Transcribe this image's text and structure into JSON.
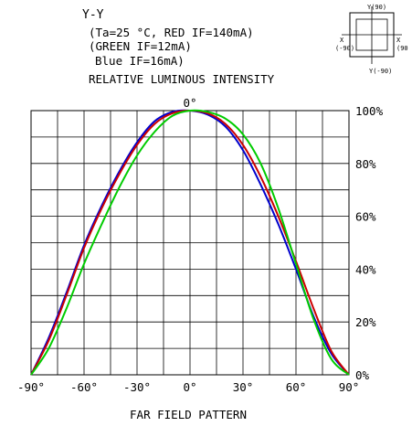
{
  "header": {
    "axis_name": "Y-Y",
    "conditions_line1": "(Ta=25 °C, RED IF=140mA)",
    "conditions_line2": "(GREEN   IF=12mA)",
    "conditions_line3": "Blue   IF=16mA)",
    "title": "RELATIVE LUMINOUS INTENSITY"
  },
  "package_diagram": {
    "top_label": "Y(90)",
    "bottom_label": "Y(-90)",
    "left_label_x": "X",
    "left_label_angle": "(-90)",
    "right_label_x": "X",
    "right_label_angle": "(90"
  },
  "chart_data": {
    "type": "line",
    "title": "RELATIVE LUMINOUS INTENSITY",
    "xlabel": "FAR FIELD PATTERN",
    "ylabel": "",
    "xlim": [
      -90,
      90
    ],
    "ylim": [
      0,
      100
    ],
    "top_label": "0°",
    "x_ticks": [
      -90,
      -60,
      -30,
      0,
      30,
      60,
      90
    ],
    "x_tick_labels": [
      "-90°",
      "-60°",
      "-30°",
      "0°",
      "30°",
      "60°",
      "90°"
    ],
    "y_ticks": [
      0,
      20,
      40,
      60,
      80,
      100
    ],
    "y_tick_labels": [
      "0%",
      "20%",
      "40%",
      "60%",
      "80%",
      "100%"
    ],
    "grid": true,
    "series": [
      {
        "color": "#0000cc",
        "x": [
          -90,
          -80,
          -70,
          -60,
          -50,
          -40,
          -30,
          -20,
          -10,
          0,
          10,
          20,
          30,
          40,
          50,
          60,
          70,
          80,
          90
        ],
        "values": [
          0,
          14,
          31,
          49,
          64,
          77,
          88,
          96,
          99.5,
          100,
          98.5,
          94,
          85,
          72,
          57,
          40,
          22,
          8,
          0
        ]
      },
      {
        "color": "#cc0000",
        "x": [
          -90,
          -80,
          -70,
          -60,
          -50,
          -40,
          -30,
          -20,
          -10,
          0,
          10,
          20,
          30,
          40,
          50,
          60,
          70,
          80,
          90
        ],
        "values": [
          0,
          13,
          30,
          48,
          63,
          76,
          87,
          95,
          99,
          100,
          99,
          95,
          87,
          75,
          60,
          43,
          25,
          9,
          0
        ]
      },
      {
        "color": "#00cc00",
        "x": [
          -90,
          -80,
          -70,
          -60,
          -50,
          -40,
          -30,
          -20,
          -10,
          0,
          10,
          20,
          30,
          40,
          50,
          60,
          70,
          80,
          90
        ],
        "values": [
          0,
          10,
          25,
          42,
          57,
          71,
          83,
          92,
          98,
          100,
          99.5,
          97,
          91,
          80,
          63,
          42,
          21,
          6,
          0
        ]
      }
    ]
  }
}
